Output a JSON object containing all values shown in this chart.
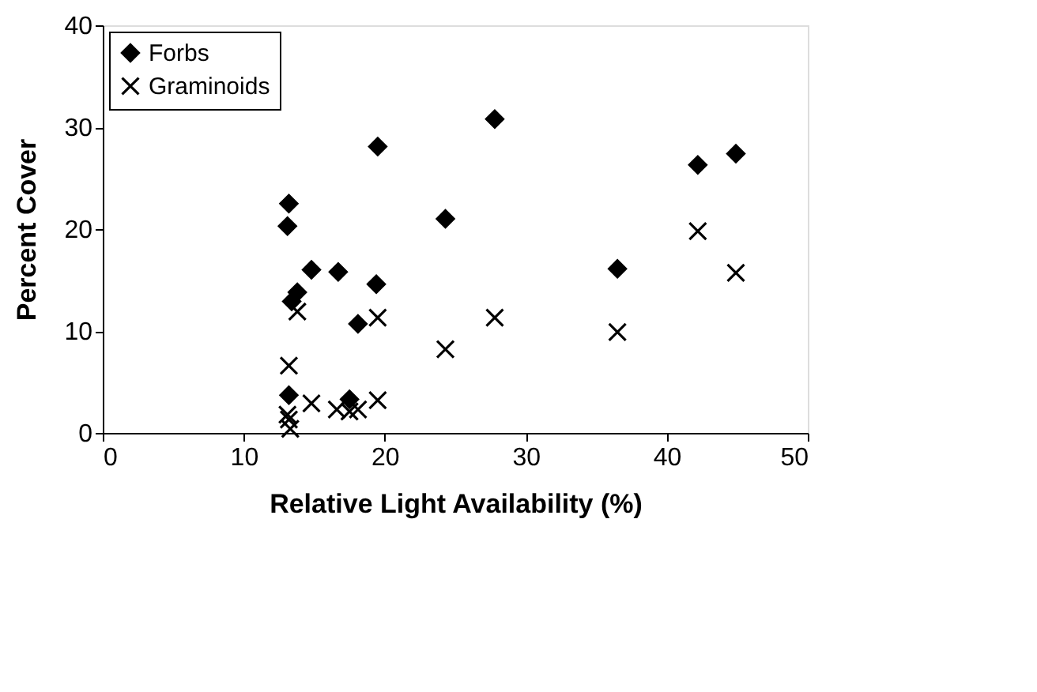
{
  "chart_data": {
    "type": "scatter",
    "xlabel": "Relative Light Availability (%)",
    "ylabel": "Percent Cover",
    "xlim": [
      0,
      50
    ],
    "xticks": [
      0,
      10,
      20,
      30,
      40,
      50
    ],
    "ylim": [
      0,
      40
    ],
    "yticks": [
      0,
      10,
      20,
      30,
      40
    ],
    "grid": false,
    "legend": "top left",
    "series": [
      {
        "name": "Forbs",
        "color": "#000000",
        "marker": "diamond",
        "x": [
          13.2,
          13.1,
          14.8,
          16.7,
          19.4,
          13.8,
          13.4,
          18.1,
          13.2,
          17.5,
          19.5,
          27.8,
          24.3,
          42.2,
          44.9,
          36.5
        ],
        "values": [
          22.5,
          20.3,
          16.0,
          15.8,
          14.6,
          13.8,
          12.9,
          10.7,
          3.7,
          3.3,
          28.1,
          30.8,
          21.0,
          26.3,
          27.4,
          16.1
        ]
      },
      {
        "name": "Graminoids",
        "color": "#000000",
        "marker": "cross",
        "x": [
          13.8,
          19.5,
          13.2,
          14.8,
          16.6,
          17.5,
          18.1,
          19.5,
          13.1,
          13.2,
          13.3,
          24.3,
          27.8,
          36.5,
          42.2,
          44.9
        ],
        "values": [
          11.9,
          11.3,
          6.6,
          2.9,
          2.3,
          2.1,
          2.3,
          3.2,
          1.8,
          1.3,
          0.4,
          8.2,
          11.3,
          9.9,
          19.8,
          15.7
        ]
      }
    ]
  }
}
